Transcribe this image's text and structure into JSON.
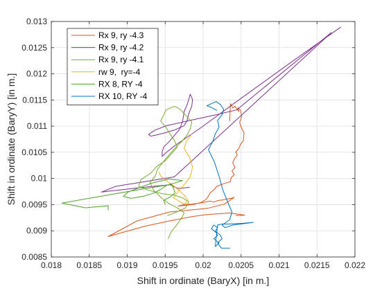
{
  "chart_data": {
    "type": "line",
    "title": "",
    "xlabel": "Shift in ordinate (BaryX) [in m.]",
    "ylabel": "Shift in ordinate (BaryY) [in m.]",
    "xlim": [
      0.018,
      0.022
    ],
    "ylim": [
      0.0085,
      0.013
    ],
    "grid": true,
    "legend_position": "top-left",
    "x_ticks": [
      "0.018",
      "0.0185",
      "0.019",
      "0.0195",
      "0.02",
      "0.0205",
      "0.021",
      "0.0215",
      "0.022"
    ],
    "y_ticks": [
      "0.0085",
      "0.009",
      "0.0095",
      "0.01",
      "0.0105",
      "0.011",
      "0.0115",
      "0.012",
      "0.0125",
      "0.013"
    ],
    "series": [
      {
        "name": "Rx 9, ry -4.3",
        "color": "#D95319",
        "x": [
          0.02035,
          0.02036,
          0.02039,
          0.02042,
          0.02047,
          0.02046,
          0.02049,
          0.02051,
          0.02048,
          0.02051,
          0.02054,
          0.02053,
          0.02049,
          0.02047,
          0.02043,
          0.02045,
          0.02041,
          0.02039,
          0.02042,
          0.02038,
          0.02041,
          0.02037,
          0.02036,
          0.02027,
          0.02018,
          0.02014,
          0.02009,
          0.02006,
          0.02003,
          0.01997,
          0.01989,
          0.01979,
          0.01971,
          0.01967,
          0.01975,
          0.01985,
          0.01995,
          0.02003,
          0.02009,
          0.02014,
          0.0202,
          0.02026,
          0.02032,
          0.02037,
          0.02041,
          0.02028,
          0.02006,
          0.01956,
          0.01913,
          0.01875,
          0.01899,
          0.01924,
          0.01956,
          0.01985,
          0.02005,
          0.02035,
          0.02055,
          0.02043
        ],
        "y": [
          0.0111,
          0.01143,
          0.01135,
          0.01138,
          0.01128,
          0.01135,
          0.01131,
          0.01119,
          0.01107,
          0.01095,
          0.01087,
          0.01072,
          0.01065,
          0.01057,
          0.01051,
          0.01045,
          0.01037,
          0.0103,
          0.01021,
          0.01014,
          0.01007,
          0.01002,
          0.00994,
          0.0099,
          0.00985,
          0.00978,
          0.00972,
          0.00964,
          0.00959,
          0.00954,
          0.00951,
          0.00949,
          0.00948,
          0.00947,
          0.0095,
          0.00951,
          0.00953,
          0.00955,
          0.00957,
          0.00955,
          0.00958,
          0.00959,
          0.00961,
          0.00962,
          0.00964,
          0.00951,
          0.00943,
          0.00936,
          0.00919,
          0.00889,
          0.00899,
          0.00909,
          0.00919,
          0.00927,
          0.00931,
          0.00934,
          0.0093,
          0.00929
        ]
      },
      {
        "name": "Rx 9, ry -4.2",
        "color": "#7E2F8E",
        "x": [
          0.02181,
          0.02113,
          0.02047,
          0.01998,
          0.01981,
          0.01962,
          0.01951,
          0.01946,
          0.01946,
          0.01948,
          0.01955,
          0.01962,
          0.01969,
          0.01973,
          0.01975,
          0.01979,
          0.01981,
          0.01983,
          0.01986,
          0.01985,
          0.01981,
          0.01979,
          0.01975,
          0.01963,
          0.01949,
          0.01938,
          0.01931,
          0.01928,
          0.01936,
          0.01952,
          0.01983,
          0.02015,
          0.02044,
          0.02169,
          0.01962,
          0.01885,
          0.01866,
          0.01914,
          0.01942,
          0.01957,
          0.01963,
          0.01968,
          0.01982
        ],
        "y": [
          0.01289,
          0.01219,
          0.0115,
          0.01098,
          0.01081,
          0.01062,
          0.01049,
          0.01042,
          0.01051,
          0.0106,
          0.0107,
          0.01082,
          0.01094,
          0.01109,
          0.01128,
          0.01141,
          0.01151,
          0.01161,
          0.01151,
          0.01138,
          0.01124,
          0.01111,
          0.01101,
          0.01093,
          0.01087,
          0.01083,
          0.01081,
          0.01084,
          0.01092,
          0.01101,
          0.01111,
          0.01121,
          0.01131,
          0.01279,
          0.01003,
          0.00985,
          0.00974,
          0.00982,
          0.00986,
          0.00988,
          0.00983,
          0.00981,
          0.00983
        ]
      },
      {
        "name": "Rx 9, ry -4.1",
        "color": "#77AC30",
        "x": [
          0.01954,
          0.01958,
          0.01965,
          0.01972,
          0.01975,
          0.01967,
          0.01955,
          0.01945,
          0.01935,
          0.0193,
          0.01937,
          0.0194,
          0.01947,
          0.01955,
          0.01963,
          0.01972,
          0.01979,
          0.01983,
          0.01985,
          0.01977,
          0.01969,
          0.01962,
          0.01951,
          0.01948,
          0.01944,
          0.01951,
          0.01956,
          0.01962,
          0.01966,
          0.01958,
          0.01951,
          0.01939,
          0.01931,
          0.01918,
          0.01915,
          0.01927,
          0.01946,
          0.01962,
          0.01973,
          0.01981,
          0.01977,
          0.01965,
          0.01953
        ],
        "y": [
          0.00885,
          0.00898,
          0.00911,
          0.00925,
          0.00934,
          0.00943,
          0.00952,
          0.00963,
          0.00977,
          0.00992,
          0.01005,
          0.01018,
          0.01031,
          0.01045,
          0.01058,
          0.01071,
          0.01083,
          0.01095,
          0.01108,
          0.01121,
          0.01133,
          0.01138,
          0.01131,
          0.01121,
          0.0111,
          0.01098,
          0.01086,
          0.01073,
          0.0106,
          0.01047,
          0.01035,
          0.01023,
          0.0101,
          0.00998,
          0.00985,
          0.00978,
          0.00971,
          0.00968,
          0.00963,
          0.00955,
          0.00944,
          0.00936,
          0.00929
        ]
      },
      {
        "name": "rw 9,  ry=-4",
        "color": "#EDB120",
        "x": [
          0.01985,
          0.01978,
          0.01975,
          0.01982,
          0.01986,
          0.01983,
          0.01975,
          0.01967,
          0.01961,
          0.01968,
          0.01975,
          0.0198,
          0.01976,
          0.01969,
          0.01962,
          0.01955,
          0.0195,
          0.01944,
          0.01942
        ],
        "y": [
          0.01085,
          0.01071,
          0.01057,
          0.01041,
          0.01022,
          0.01003,
          0.00988,
          0.00975,
          0.00963,
          0.00957,
          0.00951,
          0.00958,
          0.00967,
          0.00976,
          0.00985,
          0.00992,
          0.00998,
          0.01005,
          0.01012
        ]
      },
      {
        "name": "RX 8, RY -4",
        "color": "#4DA02A",
        "x": [
          0.01875,
          0.01875,
          0.01845,
          0.01814,
          0.01865,
          0.01917,
          0.01955,
          0.01973,
          0.01955,
          0.01932,
          0.01915,
          0.01901,
          0.01895,
          0.01905,
          0.01921,
          0.01935,
          0.01944,
          0.01951,
          0.01958,
          0.01961,
          0.01963,
          0.01957,
          0.01948,
          0.0195
        ],
        "y": [
          0.0094,
          0.00948,
          0.00944,
          0.00953,
          0.00966,
          0.00979,
          0.00988,
          0.00996,
          0.00999,
          0.00991,
          0.00982,
          0.00974,
          0.00966,
          0.00962,
          0.00966,
          0.00972,
          0.00979,
          0.00986,
          0.0099,
          0.00981,
          0.00972,
          0.00965,
          0.00958,
          0.00951
        ]
      },
      {
        "name": "RX 10, RY -4",
        "color": "#0072BD",
        "x": [
          0.02035,
          0.02024,
          0.02019,
          0.02025,
          0.02022,
          0.02016,
          0.02019,
          0.02014,
          0.02011,
          0.02017,
          0.02019,
          0.02014,
          0.02021,
          0.02016,
          0.02019,
          0.02025,
          0.02033,
          0.02049,
          0.02066,
          0.02039,
          0.02029,
          0.02025,
          0.02035,
          0.02038,
          0.02033,
          0.02026,
          0.02021,
          0.02015,
          0.02007,
          0.02013,
          0.02016,
          0.02021,
          0.02019,
          0.02025,
          0.02027,
          0.02023,
          0.02017,
          0.02011,
          0.02005,
          0.02012,
          0.02018
        ],
        "y": [
          0.00867,
          0.00867,
          0.00877,
          0.00885,
          0.00893,
          0.00899,
          0.00906,
          0.00911,
          0.00904,
          0.00897,
          0.00891,
          0.00885,
          0.00877,
          0.0087,
          0.00911,
          0.00913,
          0.00913,
          0.00914,
          0.00916,
          0.00911,
          0.00906,
          0.00911,
          0.00921,
          0.00936,
          0.00953,
          0.00978,
          0.01004,
          0.01031,
          0.01055,
          0.01072,
          0.01085,
          0.01098,
          0.01111,
          0.01122,
          0.01132,
          0.01141,
          0.01147,
          0.01143,
          0.01139,
          0.01135,
          0.0113
        ]
      }
    ]
  }
}
